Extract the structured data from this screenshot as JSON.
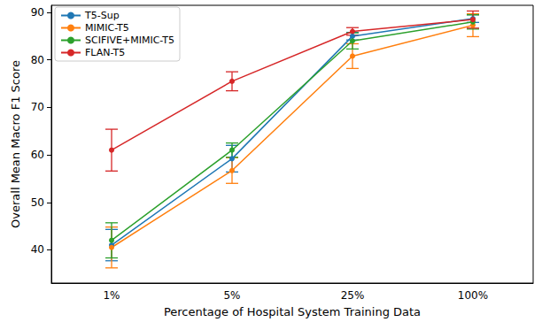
{
  "chart_data": {
    "type": "line",
    "x_label": "Percentage of Hospital System Training Data",
    "y_label": "Overall Mean Macro F1 Score",
    "categories": [
      "1%",
      "5%",
      "25%",
      "100%"
    ],
    "series": [
      {
        "name": "T5-Sup",
        "color": "#1f77b4",
        "values": [
          41.0,
          59.2,
          85.0,
          88.7
        ],
        "errors": [
          3.3,
          2.8,
          0.8,
          0.8
        ]
      },
      {
        "name": "MIMIC-T5",
        "color": "#ff7f0e",
        "values": [
          40.5,
          56.7,
          80.8,
          87.3
        ],
        "errors": [
          4.3,
          2.7,
          2.6,
          2.4
        ]
      },
      {
        "name": "SCIFIVE+MIMIC-T5",
        "color": "#2ca02c",
        "values": [
          42.0,
          61.0,
          84.0,
          88.0
        ],
        "errors": [
          3.7,
          1.5,
          1.7,
          1.5
        ]
      },
      {
        "name": "FLAN-T5",
        "color": "#d62728",
        "values": [
          61.0,
          75.5,
          86.0,
          88.5
        ],
        "errors": [
          4.4,
          2.0,
          0.8,
          1.8
        ]
      }
    ],
    "ylim": [
      33,
      91.5
    ],
    "yticks": [
      40,
      50,
      60,
      70,
      80,
      90
    ],
    "grid": false,
    "legend": "upper left",
    "marker": "circle"
  }
}
